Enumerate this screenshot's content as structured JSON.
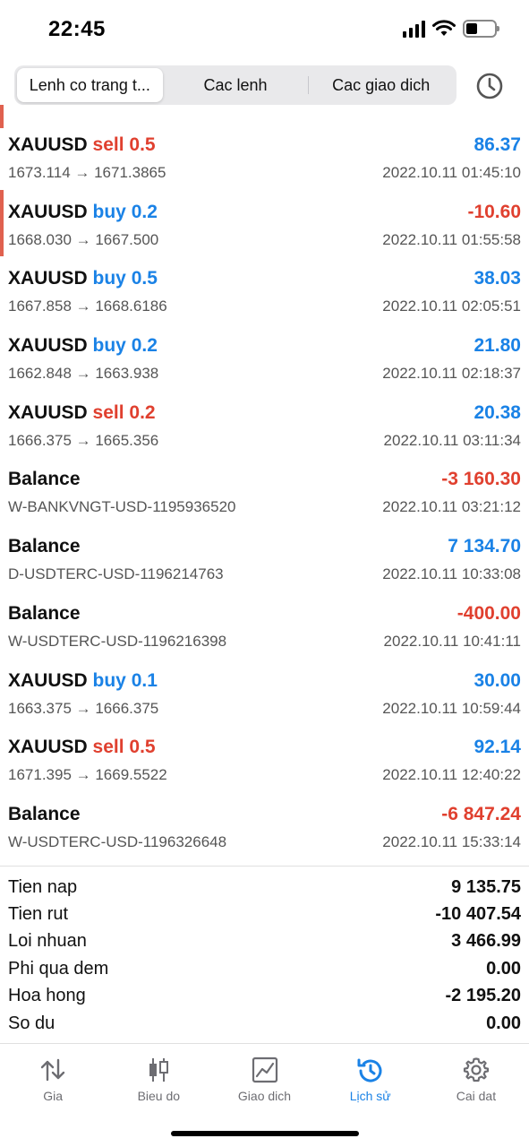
{
  "status": {
    "time": "22:45"
  },
  "segments": [
    {
      "label": "Lenh co trang t...",
      "active": true
    },
    {
      "label": "Cac lenh",
      "active": false
    },
    {
      "label": "Cac giao dich",
      "active": false
    }
  ],
  "deals": [
    {
      "symbol": "XAUUSD",
      "side": "sell",
      "volume": "0.5",
      "detail": "1673.114 → 1671.3865",
      "profit": "86.37",
      "time": "2022.10.11 01:45:10"
    },
    {
      "symbol": "XAUUSD",
      "side": "buy",
      "volume": "0.2",
      "detail": "1668.030 → 1667.500",
      "profit": "-10.60",
      "time": "2022.10.11 01:55:58"
    },
    {
      "symbol": "XAUUSD",
      "side": "buy",
      "volume": "0.5",
      "detail": "1667.858 → 1668.6186",
      "profit": "38.03",
      "time": "2022.10.11 02:05:51"
    },
    {
      "symbol": "XAUUSD",
      "side": "buy",
      "volume": "0.2",
      "detail": "1662.848 → 1663.938",
      "profit": "21.80",
      "time": "2022.10.11 02:18:37"
    },
    {
      "symbol": "XAUUSD",
      "side": "sell",
      "volume": "0.2",
      "detail": "1666.375 → 1665.356",
      "profit": "20.38",
      "time": "2022.10.11 03:11:34"
    },
    {
      "symbol": "Balance",
      "side": "",
      "volume": "",
      "detail": "W-BANKVNGT-USD-1195936520",
      "profit": "-3 160.30",
      "time": "2022.10.11 03:21:12"
    },
    {
      "symbol": "Balance",
      "side": "",
      "volume": "",
      "detail": "D-USDTERC-USD-1196214763",
      "profit": "7 134.70",
      "time": "2022.10.11 10:33:08"
    },
    {
      "symbol": "Balance",
      "side": "",
      "volume": "",
      "detail": "W-USDTERC-USD-1196216398",
      "profit": "-400.00",
      "time": "2022.10.11 10:41:11"
    },
    {
      "symbol": "XAUUSD",
      "side": "buy",
      "volume": "0.1",
      "detail": "1663.375 → 1666.375",
      "profit": "30.00",
      "time": "2022.10.11 10:59:44"
    },
    {
      "symbol": "XAUUSD",
      "side": "sell",
      "volume": "0.5",
      "detail": "1671.395 → 1669.5522",
      "profit": "92.14",
      "time": "2022.10.11 12:40:22"
    },
    {
      "symbol": "Balance",
      "side": "",
      "volume": "",
      "detail": "W-USDTERC-USD-1196326648",
      "profit": "-6 847.24",
      "time": "2022.10.11 15:33:14"
    }
  ],
  "summary": [
    {
      "label": "Tien nap",
      "value": "9 135.75"
    },
    {
      "label": "Tien rut",
      "value": "-10 407.54"
    },
    {
      "label": "Loi nhuan",
      "value": "3 466.99"
    },
    {
      "label": "Phi qua dem",
      "value": "0.00"
    },
    {
      "label": "Hoa hong",
      "value": "-2 195.20"
    },
    {
      "label": "So du",
      "value": "0.00"
    }
  ],
  "tabs": [
    {
      "label": "Gia",
      "icon": "arrows-updown-icon",
      "active": false
    },
    {
      "label": "Bieu do",
      "icon": "candlestick-icon",
      "active": false
    },
    {
      "label": "Giao dich",
      "icon": "trade-chart-icon",
      "active": false
    },
    {
      "label": "Lịch sử",
      "icon": "history-icon",
      "active": true
    },
    {
      "label": "Cai dat",
      "icon": "gear-icon",
      "active": false
    }
  ],
  "colors": {
    "accent": "#1a82e6",
    "negative": "#e0402f",
    "marker": "#e0614f"
  }
}
